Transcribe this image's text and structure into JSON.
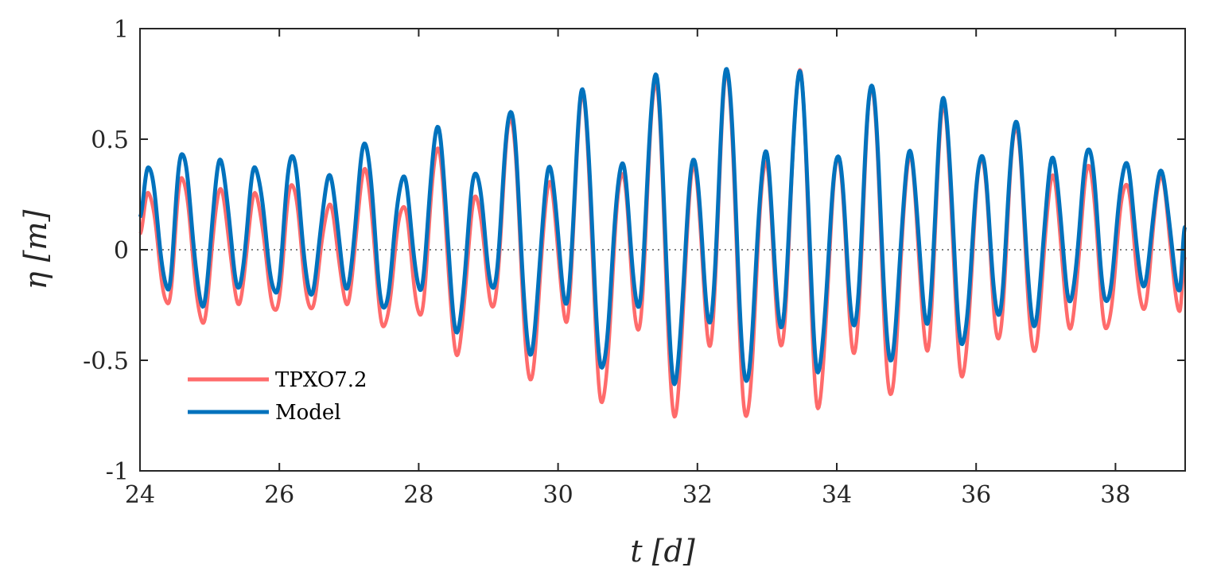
{
  "chart_data": {
    "type": "line",
    "xlabel": "t [d]",
    "ylabel": "η [m]",
    "xlim": [
      24,
      39
    ],
    "ylim": [
      -1,
      1
    ],
    "xticks": [
      24,
      26,
      28,
      30,
      32,
      34,
      36,
      38
    ],
    "yticks": [
      1,
      0.5,
      0,
      -0.5,
      -1
    ],
    "ytick_labels": [
      "1",
      "0.5",
      "0",
      "-0.5",
      "-1"
    ],
    "zero_line": {
      "y": 0,
      "style": "dotted",
      "color": "#7f7f7f"
    },
    "legend_position": "lower-left",
    "grid": false,
    "series": [
      {
        "name": "TPXO7.2",
        "color": "#ff6b6b",
        "extrema": [
          [
            24.0,
            0.08
          ],
          [
            24.12,
            0.26
          ],
          [
            24.4,
            -0.25
          ],
          [
            24.6,
            0.33
          ],
          [
            24.9,
            -0.33
          ],
          [
            25.15,
            0.27
          ],
          [
            25.42,
            -0.24
          ],
          [
            25.65,
            0.25
          ],
          [
            25.95,
            -0.28
          ],
          [
            26.18,
            0.3
          ],
          [
            26.45,
            -0.27
          ],
          [
            26.72,
            0.2
          ],
          [
            26.97,
            -0.24
          ],
          [
            27.23,
            0.36
          ],
          [
            27.5,
            -0.35
          ],
          [
            27.78,
            0.2
          ],
          [
            28.02,
            -0.3
          ],
          [
            28.27,
            0.46
          ],
          [
            28.55,
            -0.47
          ],
          [
            28.82,
            0.24
          ],
          [
            29.07,
            -0.26
          ],
          [
            29.32,
            0.6
          ],
          [
            29.6,
            -0.59
          ],
          [
            29.88,
            0.3
          ],
          [
            30.12,
            -0.32
          ],
          [
            30.35,
            0.7
          ],
          [
            30.63,
            -0.69
          ],
          [
            30.92,
            0.35
          ],
          [
            31.15,
            -0.37
          ],
          [
            31.4,
            0.76
          ],
          [
            31.67,
            -0.75
          ],
          [
            31.95,
            0.38
          ],
          [
            32.18,
            -0.43
          ],
          [
            32.42,
            0.8
          ],
          [
            32.7,
            -0.76
          ],
          [
            32.98,
            0.4
          ],
          [
            33.2,
            -0.44
          ],
          [
            33.47,
            0.81
          ],
          [
            33.73,
            -0.71
          ],
          [
            34.02,
            0.42
          ],
          [
            34.25,
            -0.47
          ],
          [
            34.5,
            0.74
          ],
          [
            34.77,
            -0.66
          ],
          [
            35.05,
            0.42
          ],
          [
            35.3,
            -0.45
          ],
          [
            35.53,
            0.65
          ],
          [
            35.8,
            -0.57
          ],
          [
            36.08,
            0.42
          ],
          [
            36.32,
            -0.41
          ],
          [
            36.57,
            0.56
          ],
          [
            36.83,
            -0.46
          ],
          [
            37.1,
            0.33
          ],
          [
            37.35,
            -0.35
          ],
          [
            37.62,
            0.38
          ],
          [
            37.87,
            -0.36
          ],
          [
            38.15,
            0.3
          ],
          [
            38.4,
            -0.27
          ],
          [
            38.65,
            0.33
          ],
          [
            38.92,
            -0.27
          ],
          [
            39.0,
            -0.04
          ]
        ]
      },
      {
        "name": "Model",
        "color": "#0072bd",
        "extrema": [
          [
            24.0,
            0.15
          ],
          [
            24.12,
            0.38
          ],
          [
            24.4,
            -0.18
          ],
          [
            24.6,
            0.44
          ],
          [
            24.9,
            -0.25
          ],
          [
            25.15,
            0.4
          ],
          [
            25.42,
            -0.17
          ],
          [
            25.65,
            0.37
          ],
          [
            25.95,
            -0.2
          ],
          [
            26.18,
            0.43
          ],
          [
            26.45,
            -0.2
          ],
          [
            26.72,
            0.33
          ],
          [
            26.97,
            -0.17
          ],
          [
            27.23,
            0.48
          ],
          [
            27.5,
            -0.27
          ],
          [
            27.78,
            0.33
          ],
          [
            28.02,
            -0.18
          ],
          [
            28.27,
            0.55
          ],
          [
            28.55,
            -0.37
          ],
          [
            28.82,
            0.35
          ],
          [
            29.07,
            -0.18
          ],
          [
            29.32,
            0.63
          ],
          [
            29.6,
            -0.47
          ],
          [
            29.88,
            0.37
          ],
          [
            30.12,
            -0.24
          ],
          [
            30.35,
            0.72
          ],
          [
            30.63,
            -0.54
          ],
          [
            30.92,
            0.39
          ],
          [
            31.15,
            -0.26
          ],
          [
            31.4,
            0.79
          ],
          [
            31.67,
            -0.6
          ],
          [
            31.95,
            0.41
          ],
          [
            32.18,
            -0.33
          ],
          [
            32.42,
            0.82
          ],
          [
            32.7,
            -0.6
          ],
          [
            32.98,
            0.44
          ],
          [
            33.2,
            -0.35
          ],
          [
            33.47,
            0.8
          ],
          [
            33.73,
            -0.55
          ],
          [
            34.02,
            0.43
          ],
          [
            34.25,
            -0.35
          ],
          [
            34.5,
            0.75
          ],
          [
            34.77,
            -0.5
          ],
          [
            35.05,
            0.44
          ],
          [
            35.3,
            -0.33
          ],
          [
            35.53,
            0.68
          ],
          [
            35.8,
            -0.43
          ],
          [
            36.08,
            0.43
          ],
          [
            36.32,
            -0.3
          ],
          [
            36.57,
            0.58
          ],
          [
            36.83,
            -0.34
          ],
          [
            37.1,
            0.41
          ],
          [
            37.35,
            -0.23
          ],
          [
            37.62,
            0.46
          ],
          [
            37.87,
            -0.24
          ],
          [
            38.15,
            0.39
          ],
          [
            38.4,
            -0.16
          ],
          [
            38.65,
            0.35
          ],
          [
            38.92,
            -0.18
          ],
          [
            39.0,
            0.1
          ]
        ]
      }
    ]
  }
}
